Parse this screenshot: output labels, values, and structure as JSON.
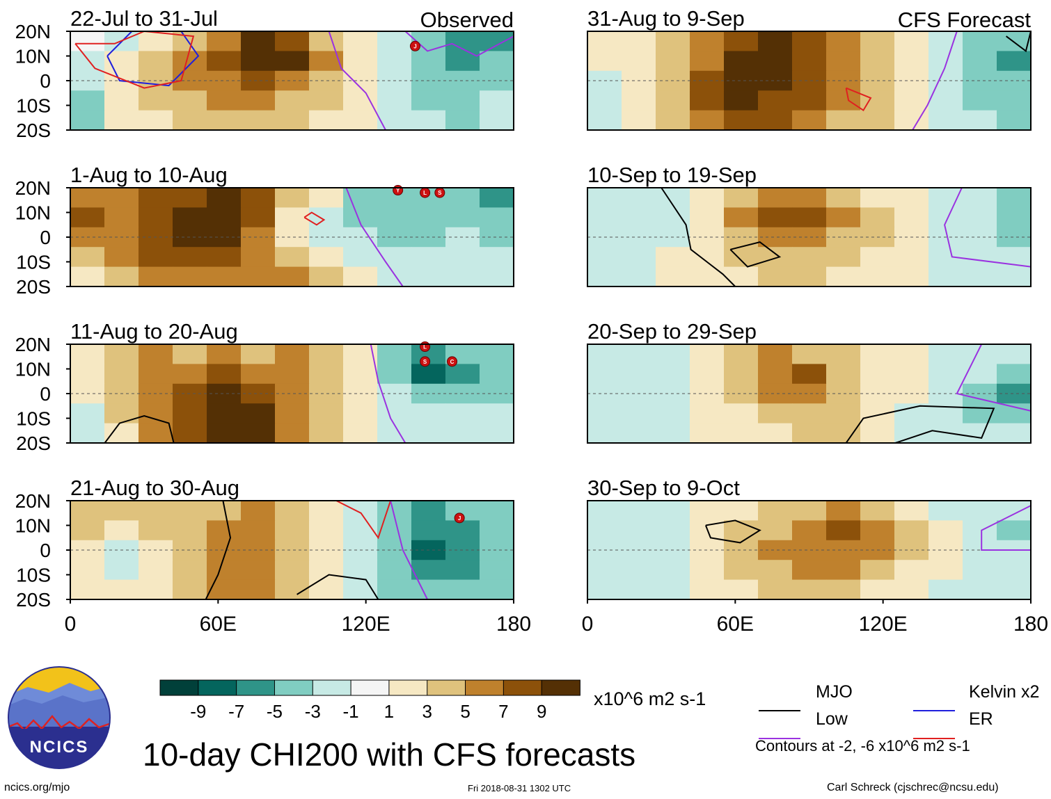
{
  "chart_data": {
    "type": "heatmap",
    "title": "10-day CHI200 with CFS forecasts",
    "variable": "CHI200 (200-hPa velocity potential) anomaly",
    "units": "x10^6 m2 s-1",
    "x_ticks": [
      "0",
      "60E",
      "120E",
      "180"
    ],
    "x_range": [
      0,
      180
    ],
    "y_ticks": [
      "20N",
      "10N",
      "0",
      "10S",
      "20S"
    ],
    "y_range": [
      -20,
      20
    ],
    "colorbar": {
      "labels": [
        "-9",
        "-7",
        "-5",
        "-3",
        "-1",
        "1",
        "3",
        "5",
        "7",
        "9"
      ],
      "colors": [
        "#01403a",
        "#04655d",
        "#2f9488",
        "#80cdc1",
        "#c7eae5",
        "#f5f5f5",
        "#f6e8c3",
        "#dfc27d",
        "#bf812d",
        "#8c510a",
        "#543005"
      ]
    },
    "legend": [
      {
        "name": "MJO",
        "color": "#000000"
      },
      {
        "name": "Kelvin x2",
        "color": "#1f1fdd"
      },
      {
        "name": "Low",
        "color": "#9a32e0"
      },
      {
        "name": "ER",
        "color": "#e02020"
      }
    ],
    "contour_note": "Contours at -2, -6 x10^6 m2 s-1",
    "columns": [
      "Observed",
      "CFS Forecast"
    ],
    "panels": [
      {
        "period": "22-Jul to 31-Jul",
        "source": "Observed",
        "storms": [
          "J"
        ],
        "field": [
          [
            0,
            -1,
            1,
            3,
            5,
            9,
            7,
            3,
            1,
            -1,
            -3,
            -5,
            -5
          ],
          [
            -1,
            1,
            3,
            5,
            7,
            9,
            9,
            5,
            1,
            -1,
            -3,
            -5,
            -3
          ],
          [
            -1,
            1,
            3,
            5,
            5,
            7,
            5,
            3,
            1,
            -1,
            -3,
            -3,
            -3
          ],
          [
            -3,
            1,
            3,
            3,
            5,
            5,
            3,
            3,
            1,
            -1,
            -3,
            -3,
            -1
          ],
          [
            -3,
            1,
            1,
            3,
            3,
            3,
            3,
            1,
            1,
            -1,
            -1,
            -3,
            -1
          ]
        ]
      },
      {
        "period": "1-Aug to 10-Aug",
        "source": "Observed",
        "storms": [
          "Y",
          "L",
          "S"
        ],
        "field": [
          [
            5,
            5,
            7,
            7,
            9,
            7,
            3,
            1,
            -3,
            -3,
            -3,
            -3,
            -5
          ],
          [
            7,
            5,
            7,
            9,
            9,
            7,
            1,
            -1,
            -3,
            -3,
            -3,
            -3,
            -3
          ],
          [
            5,
            5,
            7,
            9,
            9,
            5,
            1,
            -1,
            -1,
            -3,
            -3,
            -1,
            -3
          ],
          [
            3,
            5,
            7,
            7,
            7,
            5,
            3,
            1,
            -1,
            -1,
            -1,
            -1,
            -1
          ],
          [
            1,
            3,
            5,
            5,
            5,
            5,
            5,
            3,
            1,
            -1,
            -1,
            -1,
            -1
          ]
        ]
      },
      {
        "period": "11-Aug to 20-Aug",
        "source": "Observed",
        "storms": [
          "L",
          "S",
          "C"
        ],
        "field": [
          [
            1,
            3,
            5,
            3,
            5,
            3,
            5,
            3,
            1,
            -3,
            -5,
            -3,
            -3
          ],
          [
            1,
            3,
            5,
            5,
            7,
            5,
            5,
            3,
            1,
            -3,
            -7,
            -5,
            -3
          ],
          [
            1,
            3,
            5,
            7,
            9,
            7,
            5,
            3,
            1,
            -1,
            -3,
            -3,
            -3
          ],
          [
            -1,
            3,
            5,
            7,
            9,
            9,
            5,
            3,
            1,
            -1,
            -1,
            -1,
            -1
          ],
          [
            -1,
            1,
            5,
            7,
            9,
            9,
            5,
            3,
            1,
            -1,
            -1,
            -1,
            -1
          ]
        ]
      },
      {
        "period": "21-Aug to 30-Aug",
        "source": "Observed",
        "storms": [
          "J"
        ],
        "field": [
          [
            3,
            3,
            3,
            3,
            3,
            5,
            3,
            1,
            -1,
            -3,
            -5,
            -3,
            -3
          ],
          [
            3,
            1,
            3,
            3,
            5,
            5,
            3,
            1,
            -1,
            -3,
            -5,
            -5,
            -3
          ],
          [
            1,
            -1,
            1,
            3,
            5,
            5,
            3,
            1,
            -1,
            -3,
            -7,
            -5,
            -3
          ],
          [
            1,
            -1,
            1,
            3,
            5,
            5,
            3,
            1,
            -1,
            -3,
            -5,
            -5,
            -3
          ],
          [
            1,
            1,
            1,
            3,
            5,
            5,
            3,
            1,
            -1,
            -3,
            -3,
            -3,
            -3
          ]
        ]
      },
      {
        "period": "31-Aug to 9-Sep",
        "source": "CFS Forecast",
        "storms": [],
        "field": [
          [
            1,
            1,
            3,
            5,
            7,
            9,
            7,
            5,
            3,
            1,
            -1,
            -3,
            -3
          ],
          [
            1,
            1,
            3,
            5,
            9,
            9,
            7,
            5,
            3,
            1,
            -1,
            -3,
            -5
          ],
          [
            -1,
            1,
            3,
            7,
            9,
            9,
            7,
            5,
            3,
            1,
            -1,
            -3,
            -3
          ],
          [
            -1,
            1,
            3,
            7,
            9,
            7,
            7,
            5,
            3,
            1,
            -1,
            -3,
            -3
          ],
          [
            -1,
            1,
            3,
            5,
            7,
            7,
            5,
            3,
            3,
            1,
            -1,
            -1,
            -3
          ]
        ]
      },
      {
        "period": "10-Sep to 19-Sep",
        "source": "CFS Forecast",
        "storms": [],
        "field": [
          [
            -1,
            -1,
            -1,
            1,
            3,
            5,
            5,
            3,
            1,
            1,
            -1,
            -1,
            -3
          ],
          [
            -1,
            -1,
            -1,
            1,
            5,
            7,
            7,
            5,
            3,
            1,
            -1,
            -1,
            -3
          ],
          [
            -1,
            -1,
            -1,
            1,
            3,
            5,
            5,
            3,
            3,
            1,
            -1,
            -1,
            -3
          ],
          [
            -1,
            -1,
            1,
            1,
            3,
            3,
            3,
            3,
            1,
            1,
            -1,
            -1,
            -1
          ],
          [
            -1,
            -1,
            1,
            1,
            1,
            3,
            3,
            1,
            1,
            1,
            -1,
            -1,
            -1
          ]
        ]
      },
      {
        "period": "20-Sep to 29-Sep",
        "source": "CFS Forecast",
        "storms": [],
        "field": [
          [
            -1,
            -1,
            -1,
            1,
            3,
            5,
            3,
            3,
            1,
            1,
            -1,
            -1,
            -1
          ],
          [
            -1,
            -1,
            -1,
            1,
            3,
            5,
            7,
            3,
            1,
            1,
            -1,
            -1,
            -3
          ],
          [
            -1,
            -1,
            -1,
            1,
            3,
            5,
            5,
            3,
            1,
            1,
            -1,
            -3,
            -5
          ],
          [
            -1,
            -1,
            -1,
            1,
            1,
            3,
            3,
            3,
            1,
            -1,
            -1,
            -3,
            -3
          ],
          [
            -1,
            -1,
            -1,
            1,
            1,
            1,
            3,
            3,
            1,
            -1,
            -1,
            -1,
            -1
          ]
        ]
      },
      {
        "period": "30-Sep to 9-Oct",
        "source": "CFS Forecast",
        "storms": [],
        "field": [
          [
            -1,
            -1,
            -1,
            1,
            1,
            3,
            3,
            5,
            3,
            1,
            -1,
            -1,
            -1
          ],
          [
            -1,
            -1,
            -1,
            1,
            3,
            3,
            5,
            7,
            5,
            3,
            1,
            -1,
            -3
          ],
          [
            -1,
            -1,
            -1,
            1,
            3,
            5,
            5,
            5,
            5,
            3,
            1,
            -1,
            -1
          ],
          [
            -1,
            -1,
            -1,
            1,
            3,
            3,
            5,
            5,
            3,
            1,
            1,
            -1,
            -1
          ],
          [
            -1,
            -1,
            -1,
            1,
            1,
            3,
            3,
            3,
            1,
            1,
            -1,
            -1,
            -1
          ]
        ]
      }
    ]
  },
  "footer": {
    "logo_text": "NCICS",
    "site_url": "ncics.org/mjo",
    "timestamp": "Fri 2018-08-31 1302 UTC",
    "credit": "Carl Schreck (cjschrec@ncsu.edu)"
  }
}
